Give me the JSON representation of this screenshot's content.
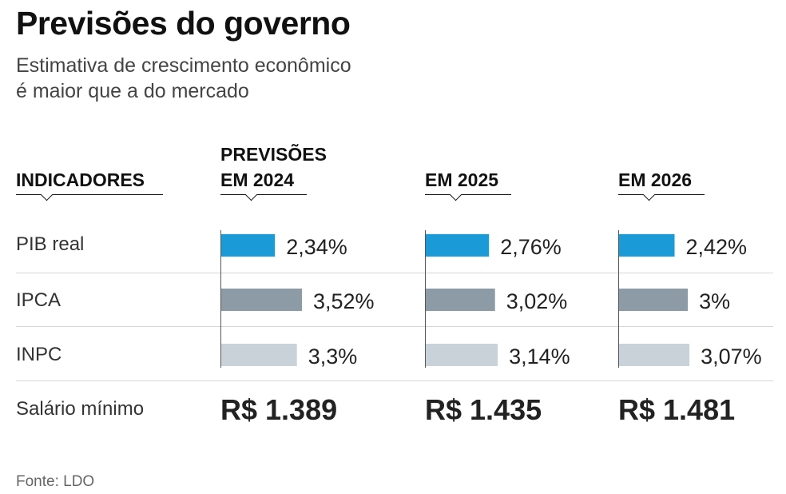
{
  "title": "Previsões do governo",
  "subtitle": [
    "Estimativa de crescimento econômico",
    "é maior que a do mercado"
  ],
  "header": {
    "indicators": "INDICADORES",
    "col1_line1": "PREVISÕES",
    "col1_line2": "EM 2024",
    "col2": "EM 2025",
    "col3": "EM 2026"
  },
  "rows": [
    "PIB real",
    "IPCA",
    "INPC"
  ],
  "salary_label": "Salário mínimo",
  "salaries": [
    "R$ 1.389",
    "R$ 1.435",
    "R$ 1.481"
  ],
  "source": "Fonte:  LDO",
  "colors": {
    "PIB real": "#1a9bd7",
    "IPCA": "#8c9ba5",
    "INPC": "#c9d2d9"
  },
  "chart_data": {
    "type": "bar",
    "categories": [
      "2024",
      "2025",
      "2026"
    ],
    "series": [
      {
        "name": "PIB real",
        "values": [
          2.34,
          2.76,
          2.42
        ],
        "labels": [
          "2,34%",
          "2,76%",
          "2,42%"
        ]
      },
      {
        "name": "IPCA",
        "values": [
          3.52,
          3.02,
          3.0
        ],
        "labels": [
          "3,52%",
          "3,02%",
          "3%"
        ]
      },
      {
        "name": "INPC",
        "values": [
          3.3,
          3.14,
          3.07
        ],
        "labels": [
          "3,3%",
          "3,14%",
          "3,07%"
        ]
      }
    ]
  }
}
